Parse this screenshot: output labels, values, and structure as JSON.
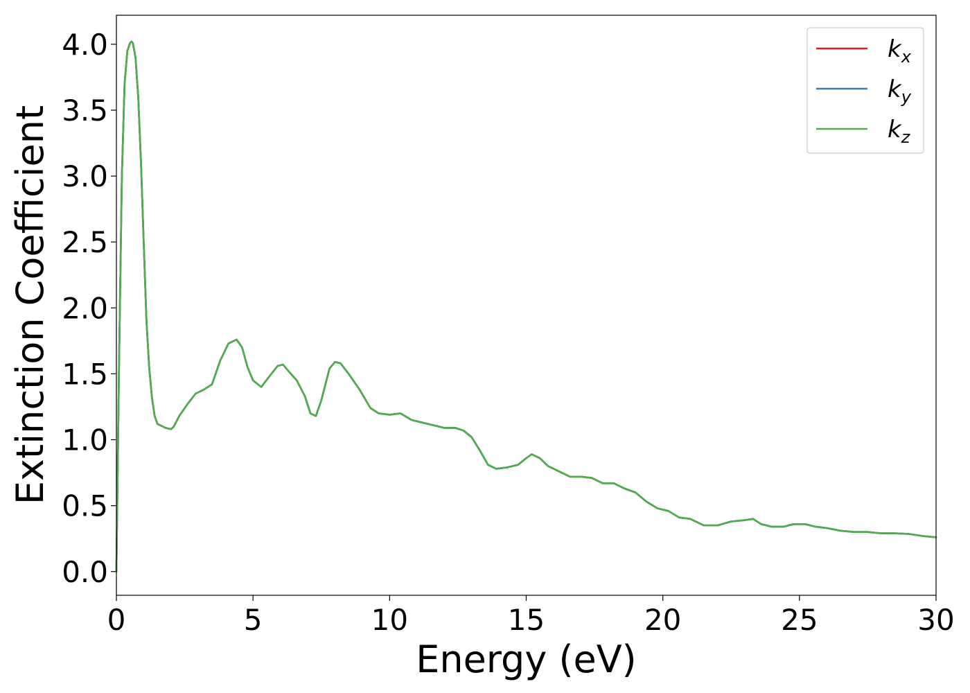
{
  "chart_data": {
    "type": "line",
    "title": "",
    "xlabel": "Energy (eV)",
    "ylabel": "Extinction Coefficient",
    "xlim": [
      0,
      30
    ],
    "ylim": [
      -0.18,
      4.22
    ],
    "xticks": [
      0,
      5,
      10,
      15,
      20,
      25,
      30
    ],
    "xtick_labels": [
      "0",
      "5",
      "10",
      "15",
      "20",
      "25",
      "30"
    ],
    "yticks": [
      0.0,
      0.5,
      1.0,
      1.5,
      2.0,
      2.5,
      3.0,
      3.5,
      4.0
    ],
    "ytick_labels": [
      "0.0",
      "0.5",
      "1.0",
      "1.5",
      "2.0",
      "2.5",
      "3.0",
      "3.5",
      "4.0"
    ],
    "grid": false,
    "legend_position": "top-right",
    "x": [
      0,
      0.1,
      0.2,
      0.3,
      0.4,
      0.5,
      0.55,
      0.6,
      0.7,
      0.8,
      0.9,
      1.0,
      1.1,
      1.2,
      1.3,
      1.4,
      1.5,
      1.6,
      1.7,
      1.8,
      1.9,
      2.0,
      2.1,
      2.3,
      2.6,
      2.9,
      3.2,
      3.5,
      3.8,
      4.1,
      4.4,
      4.6,
      4.8,
      5.0,
      5.3,
      5.6,
      5.9,
      6.1,
      6.3,
      6.6,
      6.9,
      7.1,
      7.3,
      7.5,
      7.8,
      8.0,
      8.2,
      8.5,
      8.9,
      9.3,
      9.6,
      10.0,
      10.4,
      10.8,
      11.2,
      11.6,
      12.0,
      12.4,
      12.7,
      13.0,
      13.3,
      13.6,
      13.9,
      14.3,
      14.7,
      15.0,
      15.2,
      15.5,
      15.8,
      16.2,
      16.6,
      17.0,
      17.4,
      17.8,
      18.2,
      18.6,
      19.0,
      19.4,
      19.8,
      20.2,
      20.6,
      21.0,
      21.5,
      22.0,
      22.5,
      23.0,
      23.3,
      23.6,
      24.0,
      24.4,
      24.8,
      25.2,
      25.6,
      26.0,
      26.5,
      27.0,
      27.5,
      28.0,
      28.5,
      29.0,
      29.5,
      30.0
    ],
    "series": [
      {
        "name": "kx",
        "color": "#e41a1c",
        "y": [
          0.0,
          1.6,
          3.0,
          3.7,
          3.95,
          4.01,
          4.02,
          4.01,
          3.9,
          3.6,
          3.1,
          2.5,
          1.9,
          1.55,
          1.32,
          1.18,
          1.12,
          1.11,
          1.1,
          1.09,
          1.085,
          1.08,
          1.1,
          1.18,
          1.27,
          1.35,
          1.38,
          1.42,
          1.6,
          1.73,
          1.76,
          1.7,
          1.55,
          1.45,
          1.4,
          1.48,
          1.56,
          1.57,
          1.52,
          1.45,
          1.33,
          1.2,
          1.18,
          1.3,
          1.54,
          1.59,
          1.58,
          1.5,
          1.38,
          1.24,
          1.2,
          1.19,
          1.2,
          1.15,
          1.13,
          1.11,
          1.09,
          1.09,
          1.07,
          1.02,
          0.92,
          0.81,
          0.78,
          0.79,
          0.81,
          0.86,
          0.89,
          0.86,
          0.8,
          0.76,
          0.72,
          0.72,
          0.71,
          0.67,
          0.67,
          0.63,
          0.6,
          0.53,
          0.48,
          0.46,
          0.41,
          0.4,
          0.35,
          0.35,
          0.38,
          0.39,
          0.4,
          0.36,
          0.34,
          0.34,
          0.36,
          0.36,
          0.34,
          0.33,
          0.31,
          0.3,
          0.3,
          0.29,
          0.29,
          0.285,
          0.27,
          0.26
        ]
      },
      {
        "name": "ky",
        "color": "#377eb8",
        "y": [
          0.0,
          1.6,
          3.0,
          3.7,
          3.95,
          4.01,
          4.02,
          4.01,
          3.9,
          3.6,
          3.1,
          2.5,
          1.9,
          1.55,
          1.32,
          1.18,
          1.12,
          1.11,
          1.1,
          1.09,
          1.085,
          1.08,
          1.1,
          1.18,
          1.27,
          1.35,
          1.38,
          1.42,
          1.6,
          1.73,
          1.76,
          1.7,
          1.55,
          1.45,
          1.4,
          1.48,
          1.56,
          1.57,
          1.52,
          1.45,
          1.33,
          1.2,
          1.18,
          1.3,
          1.54,
          1.59,
          1.58,
          1.5,
          1.38,
          1.24,
          1.2,
          1.19,
          1.2,
          1.15,
          1.13,
          1.11,
          1.09,
          1.09,
          1.07,
          1.02,
          0.92,
          0.81,
          0.78,
          0.79,
          0.81,
          0.86,
          0.89,
          0.86,
          0.8,
          0.76,
          0.72,
          0.72,
          0.71,
          0.67,
          0.67,
          0.63,
          0.6,
          0.53,
          0.48,
          0.46,
          0.41,
          0.4,
          0.35,
          0.35,
          0.38,
          0.39,
          0.4,
          0.36,
          0.34,
          0.34,
          0.36,
          0.36,
          0.34,
          0.33,
          0.31,
          0.3,
          0.3,
          0.29,
          0.29,
          0.285,
          0.27,
          0.26
        ]
      },
      {
        "name": "kz",
        "color": "#4daf4a",
        "y": [
          0.0,
          1.6,
          3.0,
          3.7,
          3.95,
          4.01,
          4.02,
          4.01,
          3.9,
          3.6,
          3.1,
          2.5,
          1.9,
          1.55,
          1.32,
          1.18,
          1.12,
          1.11,
          1.1,
          1.09,
          1.085,
          1.08,
          1.1,
          1.18,
          1.27,
          1.35,
          1.38,
          1.42,
          1.6,
          1.73,
          1.76,
          1.7,
          1.55,
          1.45,
          1.4,
          1.48,
          1.56,
          1.57,
          1.52,
          1.45,
          1.33,
          1.2,
          1.18,
          1.3,
          1.54,
          1.59,
          1.58,
          1.5,
          1.38,
          1.24,
          1.2,
          1.19,
          1.2,
          1.15,
          1.13,
          1.11,
          1.09,
          1.09,
          1.07,
          1.02,
          0.92,
          0.81,
          0.78,
          0.79,
          0.81,
          0.86,
          0.89,
          0.86,
          0.8,
          0.76,
          0.72,
          0.72,
          0.71,
          0.67,
          0.67,
          0.63,
          0.6,
          0.53,
          0.48,
          0.46,
          0.41,
          0.4,
          0.35,
          0.35,
          0.38,
          0.39,
          0.4,
          0.36,
          0.34,
          0.34,
          0.36,
          0.36,
          0.34,
          0.33,
          0.31,
          0.3,
          0.3,
          0.29,
          0.29,
          0.285,
          0.27,
          0.26
        ]
      }
    ],
    "legend": [
      {
        "base": "k",
        "sub": "x",
        "color": "#e41a1c"
      },
      {
        "base": "k",
        "sub": "y",
        "color": "#377eb8"
      },
      {
        "base": "k",
        "sub": "z",
        "color": "#4daf4a"
      }
    ]
  }
}
